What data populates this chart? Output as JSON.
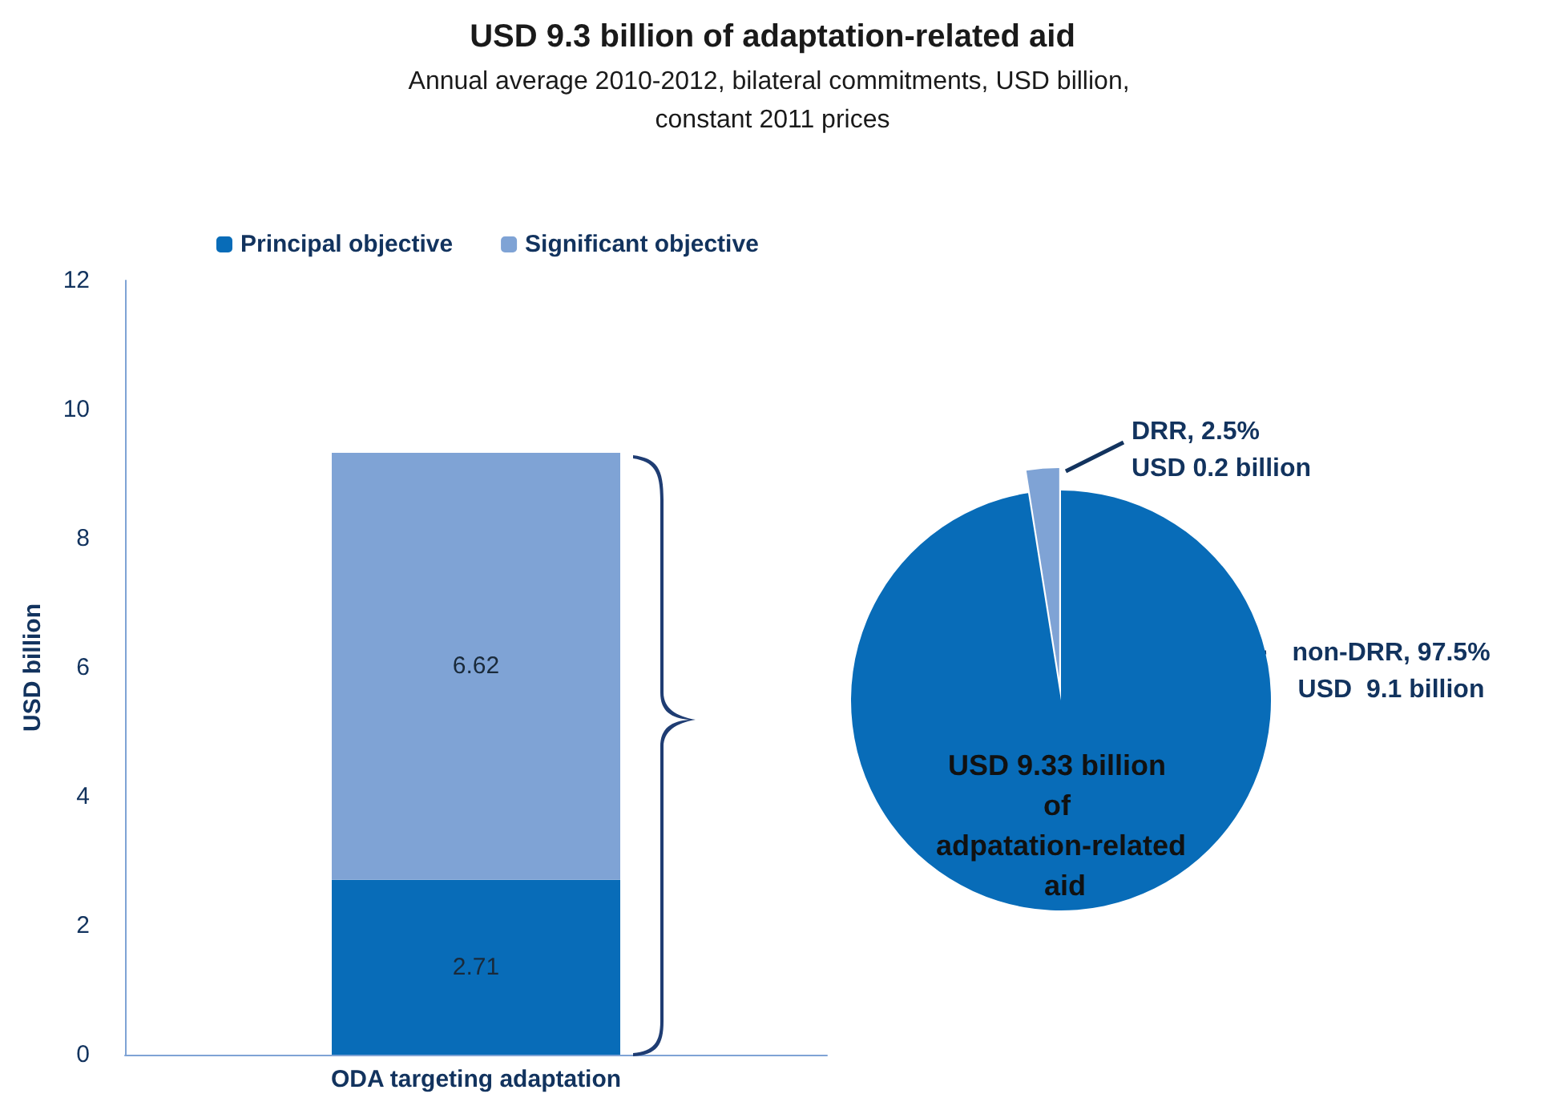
{
  "chart_data": [
    {
      "type": "bar",
      "title": "USD 9.3 billion of adaptation-related aid",
      "subtitle": "Annual average 2010-2012, bilateral commitments, USD billion, constant 2011 prices",
      "ylabel": "USD billion",
      "categories": [
        "ODA targeting adaptation"
      ],
      "stacked": true,
      "series": [
        {
          "name": "Principal objective",
          "color": "#086cb8",
          "values": [
            2.71
          ]
        },
        {
          "name": "Significant objective",
          "color": "#7fa3d5",
          "values": [
            6.62
          ]
        }
      ],
      "ylim": [
        0,
        12
      ],
      "yticks": [
        0,
        2,
        4,
        6,
        8,
        10,
        12
      ],
      "grid": false,
      "legend": "top",
      "data_labels": true
    },
    {
      "type": "pie",
      "categories": [
        "DRR",
        "non-DRR"
      ],
      "values": [
        2.5,
        97.5
      ],
      "colors": [
        "#7fa3d5",
        "#086cb8"
      ],
      "value_labels": [
        "2.5%",
        "97.5%"
      ],
      "annotations": [
        "USD 0.2 billion",
        "USD  9.1 billion",
        "USD 9.33 billion of adpatation-related aid"
      ],
      "legend": false
    }
  ]
}
